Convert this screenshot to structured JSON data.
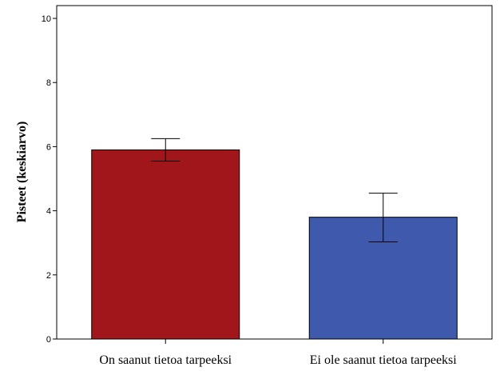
{
  "chart_data": {
    "type": "bar",
    "title": "",
    "xlabel": "",
    "ylabel": "Pisteet (keskiarvo)",
    "categories": [
      "On saanut tietoa tarpeeksi",
      "Ei ole saanut tietoa tarpeeksi"
    ],
    "values": [
      5.9,
      3.8
    ],
    "error_bars": [
      {
        "low": 5.55,
        "high": 6.25
      },
      {
        "low": 3.03,
        "high": 4.55
      }
    ],
    "colors": [
      "#a0161b",
      "#3f59ad"
    ],
    "ylim": [
      0,
      10.4
    ],
    "yticks": [
      "0",
      "2",
      "4",
      "6",
      "8",
      "10"
    ],
    "grid": false,
    "legend": "none"
  }
}
